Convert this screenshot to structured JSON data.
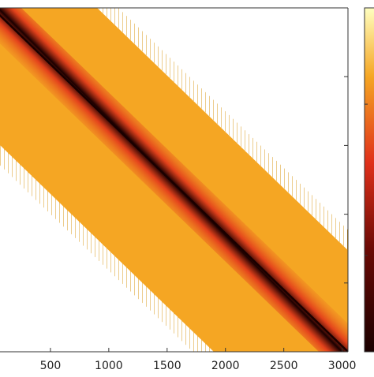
{
  "chart_data": {
    "type": "heatmap",
    "title": "",
    "xlabel": "",
    "ylabel": "",
    "xlim": [
      0,
      3050
    ],
    "ylim": [
      0,
      3050
    ],
    "x_ticks": [
      500,
      1000,
      1500,
      2000,
      2500,
      3000
    ],
    "x_tick_labels": [
      "500",
      "1000",
      "1500",
      "2000",
      "2500",
      "3000"
    ],
    "band": {
      "description_values": "banded matrix; nonzeros concentrated along main diagonal",
      "upper_halfwidth": 900,
      "lower_halfwidth": 1150,
      "dense_core_halfwidth": 250
    },
    "grid": false,
    "colormap": "hot",
    "colors": {
      "background": "#ffffff",
      "band_fill": "#f5a623",
      "band_edge": "#d99a1a",
      "mid": "#e0301a",
      "high": "#6b0a05",
      "peak": "#1a0000",
      "axis": "#333333",
      "text": "#222222"
    }
  }
}
